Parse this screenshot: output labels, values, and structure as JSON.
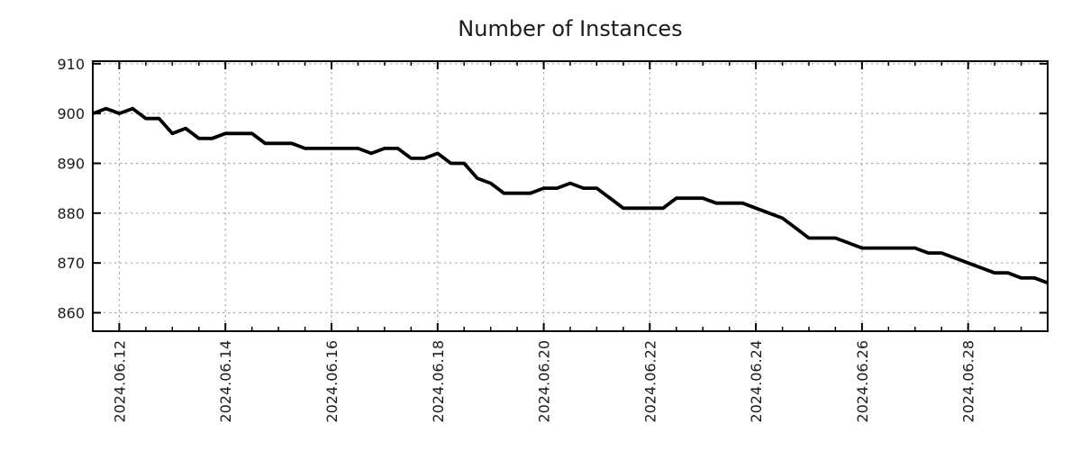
{
  "chart_data": {
    "type": "line",
    "title": "Number of Instances",
    "x_start": "2024-06-11 12:00",
    "x_end": "2024-06-29 12:00",
    "sample_interval_hours": 6,
    "series": [
      {
        "name": "Number of Instances",
        "color": "#000000",
        "values": [
          900,
          901,
          900,
          901,
          899,
          899,
          896,
          897,
          895,
          895,
          896,
          896,
          896,
          894,
          894,
          894,
          893,
          893,
          893,
          893,
          893,
          892,
          893,
          893,
          891,
          891,
          892,
          890,
          890,
          887,
          886,
          884,
          884,
          884,
          885,
          885,
          886,
          885,
          885,
          883,
          881,
          881,
          881,
          881,
          883,
          883,
          883,
          882,
          882,
          882,
          881,
          880,
          879,
          877,
          875,
          875,
          875,
          874,
          873,
          873,
          873,
          873,
          873,
          872,
          872,
          871,
          870,
          869,
          868,
          868,
          867,
          867,
          866
        ]
      }
    ],
    "x_tick_labels": [
      "2024.06.12",
      "2024.06.14",
      "2024.06.16",
      "2024.06.18",
      "2024.06.20",
      "2024.06.22",
      "2024.06.24",
      "2024.06.26",
      "2024.06.28"
    ],
    "x_major_ticks_days_from_start": [
      0.5,
      2.5,
      4.5,
      6.5,
      8.5,
      10.5,
      12.5,
      14.5,
      16.5
    ],
    "x_minor_tick_interval_days": 0.5,
    "x_range_days": [
      0,
      18
    ],
    "y_ticks": [
      860,
      870,
      880,
      890,
      900,
      910
    ],
    "ylim": [
      856.3,
      910.5
    ],
    "grid": "both-dashed",
    "legend": "none",
    "line_width": 3.8,
    "colors": {
      "line": "#000000",
      "grid": "#aaaaaa",
      "frame": "#000000",
      "text": "#1b1b1b",
      "background": "#ffffff"
    }
  }
}
